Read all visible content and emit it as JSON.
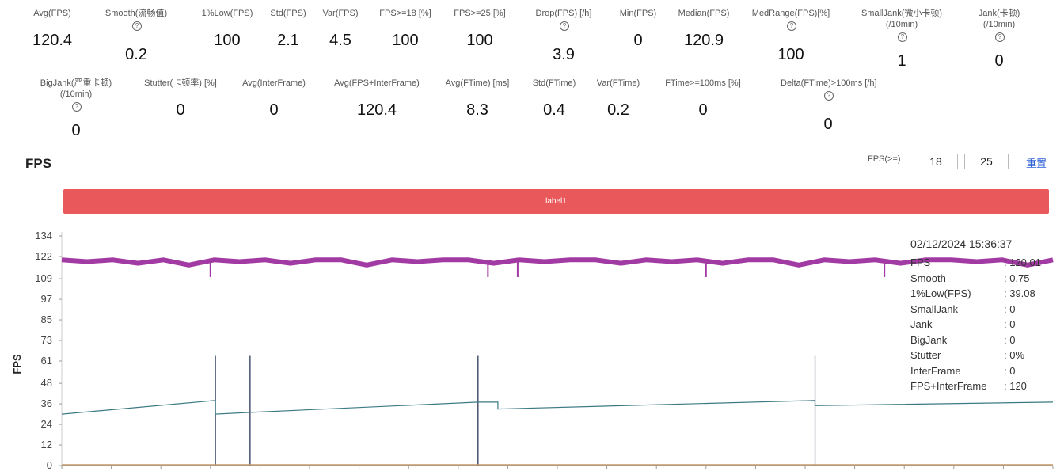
{
  "stats_row1": [
    {
      "label": "Avg(FPS)",
      "value": "120.4"
    },
    {
      "label": "Smooth(流畅值)",
      "value": "0.2",
      "info": true
    },
    {
      "label": "1%Low(FPS)",
      "value": "100"
    },
    {
      "label": "Std(FPS)",
      "value": "2.1"
    },
    {
      "label": "Var(FPS)",
      "value": "4.5"
    },
    {
      "label": "FPS>=18 [%]",
      "value": "100"
    },
    {
      "label": "FPS>=25 [%]",
      "value": "100"
    },
    {
      "label": "Drop(FPS) [/h]",
      "value": "3.9",
      "info": true
    },
    {
      "label": "Min(FPS)",
      "value": "0"
    },
    {
      "label": "Median(FPS)",
      "value": "120.9"
    },
    {
      "label": "MedRange(FPS)[%]",
      "value": "100",
      "info": true
    },
    {
      "label": "SmallJank(微小卡顿)",
      "label2": "(/10min)",
      "value": "1",
      "info": true
    },
    {
      "label": "Jank(卡顿)",
      "label2": "(/10min)",
      "value": "0",
      "info": true
    }
  ],
  "stats_row2": [
    {
      "label": "BigJank(严重卡顿)",
      "label2": "(/10min)",
      "value": "0",
      "info": true
    },
    {
      "label": "Stutter(卡顿率) [%]",
      "value": "0"
    },
    {
      "label": "Avg(InterFrame)",
      "value": "0"
    },
    {
      "label": "Avg(FPS+InterFrame)",
      "value": "120.4"
    },
    {
      "label": "Avg(FTime) [ms]",
      "value": "8.3"
    },
    {
      "label": "Std(FTime)",
      "value": "0.4"
    },
    {
      "label": "Var(FTime)",
      "value": "0.2"
    },
    {
      "label": "FTime>=100ms [%]",
      "value": "0"
    },
    {
      "label": "Delta(FTime)>100ms [/h]",
      "value": "0",
      "info": true
    }
  ],
  "section_title": "FPS",
  "threshold": {
    "label": "FPS(>=)",
    "value1": "18",
    "value2": "25",
    "reset_label": "重置"
  },
  "label_bar": "label1",
  "tooltip": {
    "timestamp": "02/12/2024 15:36:37",
    "rows": [
      {
        "key": "FPS",
        "value": ": 120.01"
      },
      {
        "key": "Smooth",
        "value": ": 0.75"
      },
      {
        "key": "1%Low(FPS)",
        "value": ": 39.08"
      },
      {
        "key": "SmallJank",
        "value": ": 0"
      },
      {
        "key": "Jank",
        "value": ": 0"
      },
      {
        "key": "BigJank",
        "value": ": 0"
      },
      {
        "key": "Stutter",
        "value": ": 0%"
      },
      {
        "key": "InterFrame",
        "value": ": 0"
      },
      {
        "key": "FPS+InterFrame",
        "value": ": 120"
      }
    ]
  },
  "chart_data": {
    "type": "line",
    "ylabel": "FPS",
    "ylim": [
      0,
      134
    ],
    "yticks": [
      0,
      12,
      24,
      36,
      48,
      61,
      73,
      85,
      97,
      109,
      122,
      134
    ],
    "series": [
      {
        "values": [
          120,
          119,
          120,
          118,
          120,
          117,
          120,
          119,
          120,
          118,
          120,
          120,
          117,
          120,
          119,
          120,
          120,
          118,
          120,
          119,
          120,
          120,
          118,
          120,
          119,
          120,
          118,
          120,
          120,
          117,
          120,
          119,
          120,
          118,
          120,
          120,
          119,
          120,
          117,
          120
        ],
        "color": "#a23aa3"
      },
      {
        "x": [
          0,
          0.155,
          0.155,
          0.19,
          0.42,
          0.42,
          0.44,
          0.44,
          0.76,
          0.76,
          1
        ],
        "values": [
          30,
          38,
          30,
          31,
          37,
          37,
          37,
          33,
          38,
          35,
          37
        ],
        "color": "#3b7a84"
      }
    ],
    "spikes": [
      0.155,
      0.19,
      0.42,
      0.76
    ]
  },
  "colors": {
    "label_bar": "#e9585b",
    "fps_line": "#a23aa3",
    "smooth_line": "#3b7a84",
    "reset": "#2c5fd6"
  }
}
